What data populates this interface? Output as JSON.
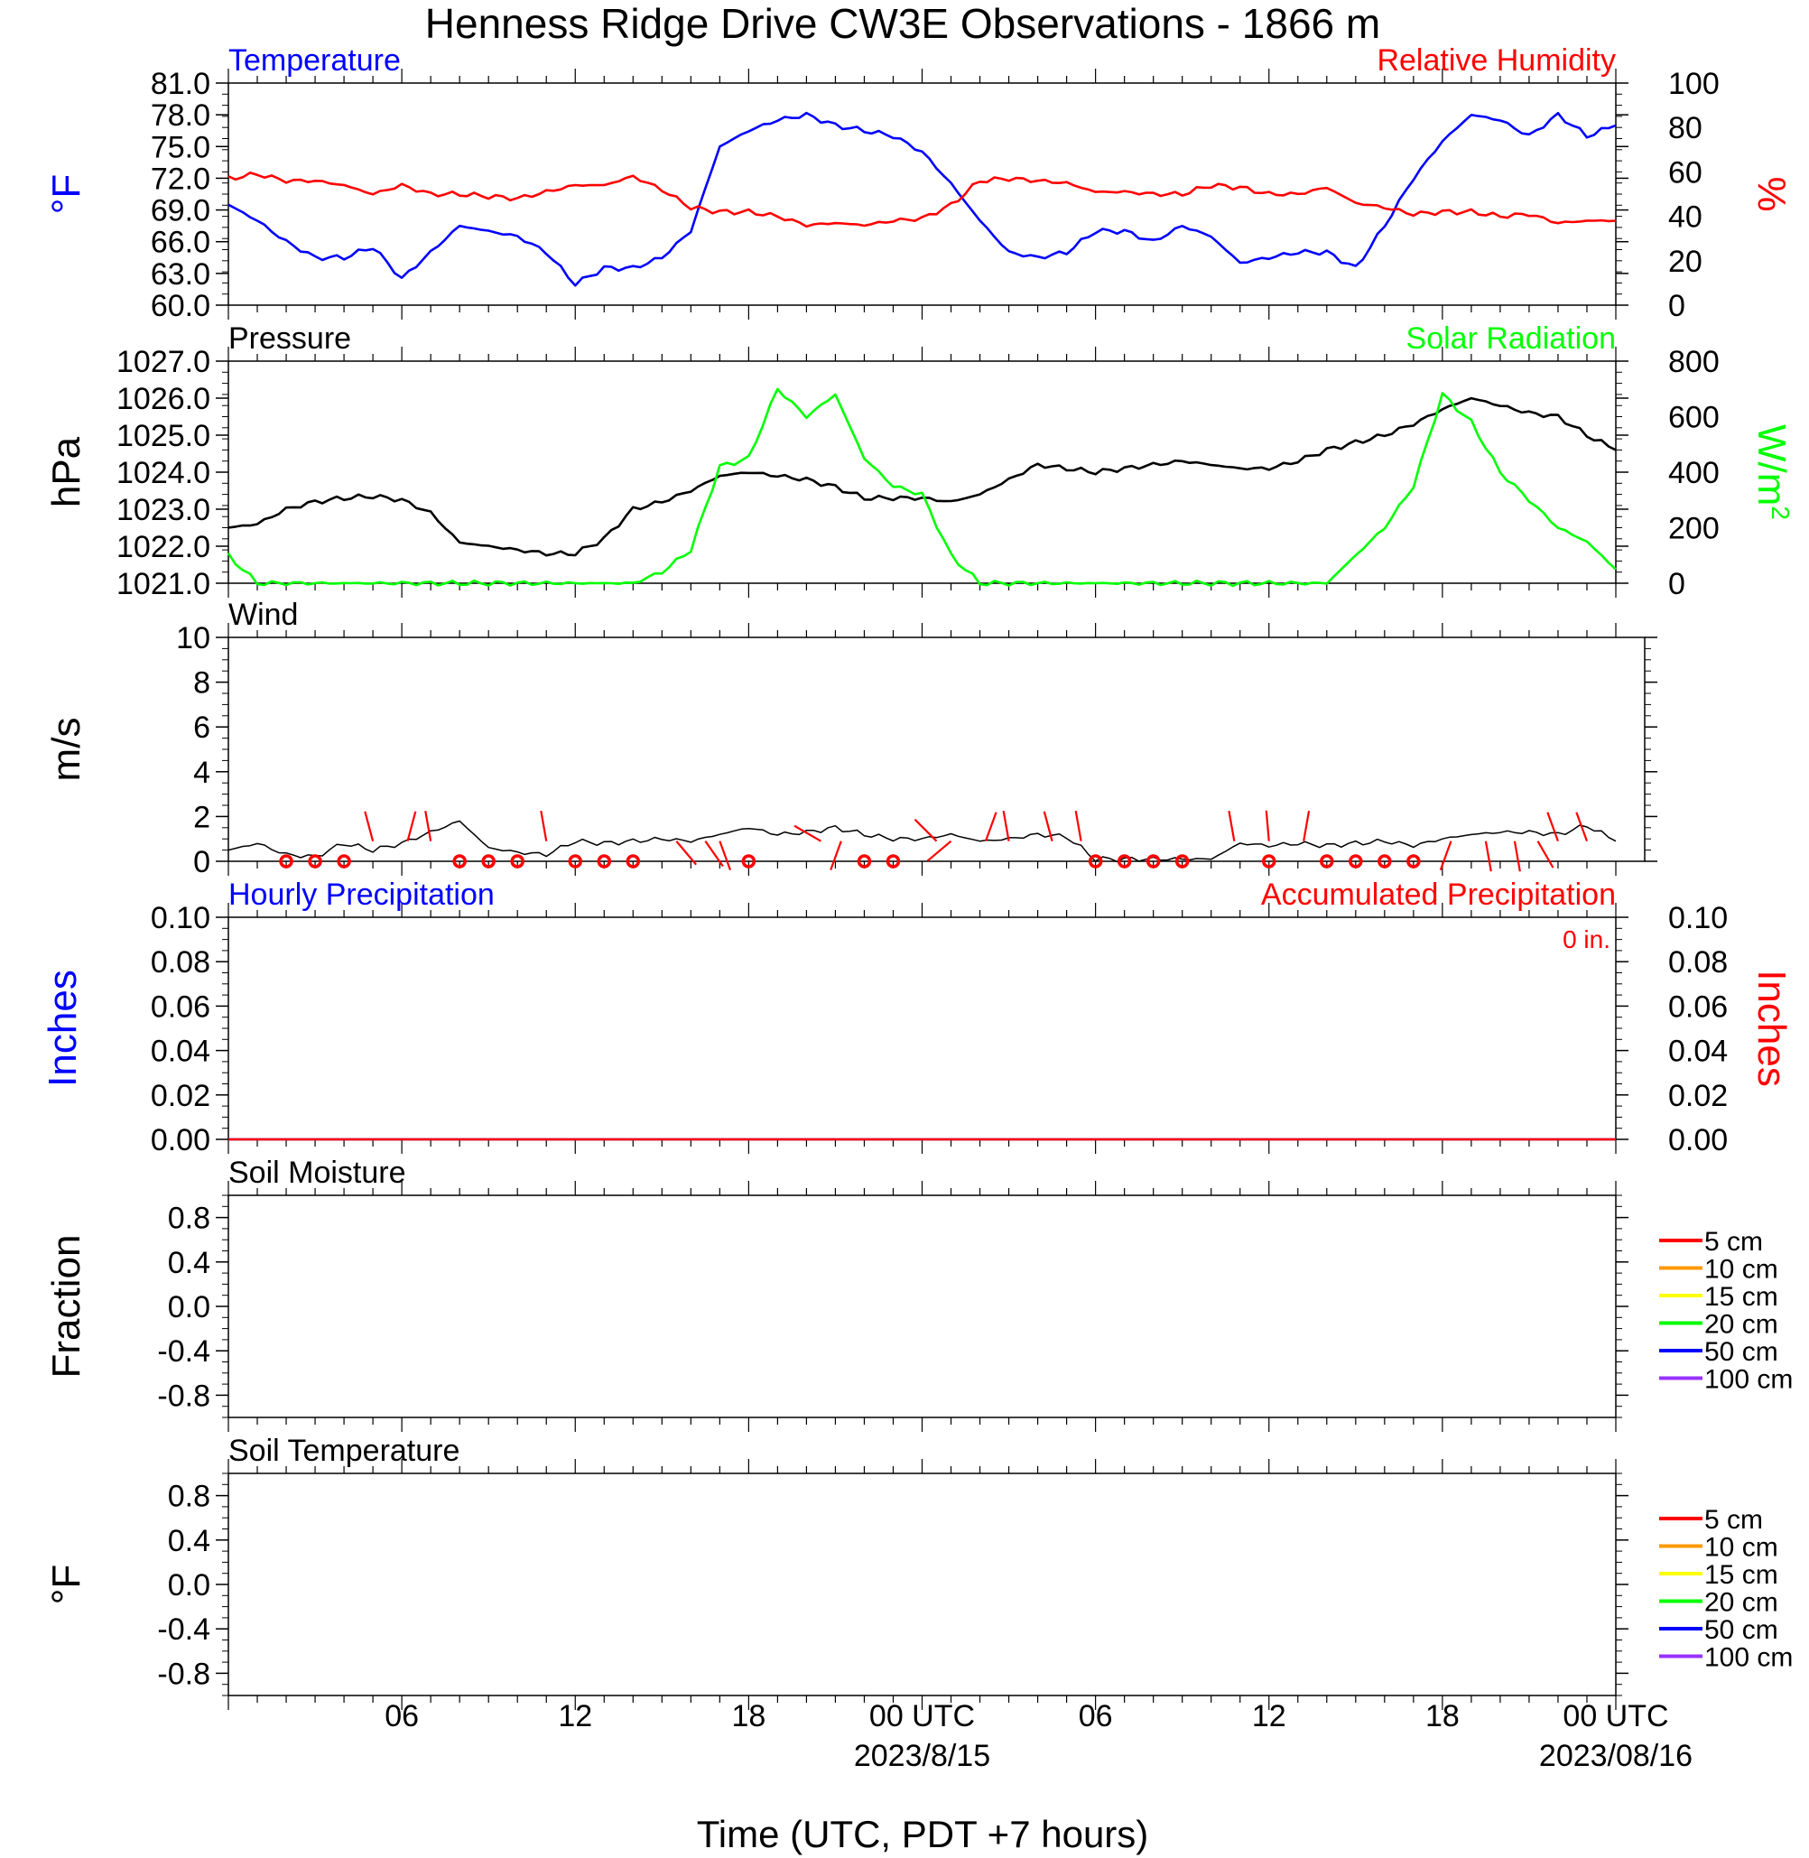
{
  "title": "Henness Ridge Drive CW3E Observations - 1866 m",
  "xlabel": "Time (UTC, PDT +7 hours)",
  "x_ticks": [
    "06",
    "12",
    "18",
    "00 UTC",
    "06",
    "12",
    "18",
    "00 UTC"
  ],
  "x_dates": [
    "2023/8/15",
    "2023/08/16"
  ],
  "colors": {
    "blue": "#0000ff",
    "red": "#ff0000",
    "green": "#00ff00",
    "black": "#000000"
  },
  "chart_data": [
    {
      "type": "line",
      "panel": "temperature_rh",
      "left_label": "Temperature",
      "right_label": "Relative Humidity",
      "left_unit": "°F",
      "right_unit": "%",
      "left_ticks": [
        "81.0",
        "78.0",
        "75.0",
        "72.0",
        "69.0",
        "66.0",
        "63.0",
        "60.0"
      ],
      "right_ticks": [
        "100",
        "80",
        "60",
        "40",
        "20",
        "0"
      ],
      "left_ylim": [
        60,
        81
      ],
      "right_ylim": [
        0,
        100
      ],
      "x_hours": [
        0,
        1,
        2,
        3,
        4,
        5,
        6,
        7,
        8,
        9,
        10,
        11,
        12,
        13,
        14,
        15,
        16,
        17,
        18,
        19,
        20,
        21,
        22,
        23,
        24,
        25,
        26,
        27,
        28,
        29,
        30,
        31,
        32,
        33,
        34,
        35,
        36,
        37,
        38,
        39,
        40,
        41,
        42,
        43,
        44,
        45,
        46,
        47,
        48
      ],
      "series": [
        {
          "name": "Temperature",
          "axis": "left",
          "color": "#0000ff",
          "values": [
            69.5,
            68,
            66,
            64.5,
            64.5,
            65.5,
            62.5,
            65,
            67.5,
            67,
            66.5,
            65,
            62,
            63.5,
            63.5,
            64.5,
            67,
            75,
            76.5,
            77.5,
            78,
            77,
            76.5,
            76,
            74.5,
            71.5,
            68,
            65,
            64.5,
            65,
            67,
            67,
            66,
            67.5,
            66.5,
            64,
            64.5,
            65,
            65,
            63.5,
            67.5,
            72,
            75.5,
            78,
            77.5,
            76,
            78,
            76,
            77
          ]
        },
        {
          "name": "Relative Humidity",
          "axis": "right",
          "color": "#ff0000",
          "values": [
            57,
            59,
            56,
            56,
            54,
            50,
            54,
            50,
            50,
            49,
            48,
            51,
            54,
            54,
            58,
            52,
            44,
            42,
            42,
            40,
            36,
            37,
            36,
            38,
            39,
            45,
            56,
            57,
            56,
            55,
            51,
            51,
            50,
            50,
            54,
            53,
            50,
            50,
            53,
            46,
            44,
            41,
            42,
            42,
            40,
            41,
            37,
            38,
            38
          ]
        }
      ]
    },
    {
      "type": "line",
      "panel": "pressure_solar",
      "left_label": "Pressure",
      "right_label": "Solar Radiation",
      "left_unit": "hPa",
      "right_unit": "W/m",
      "right_unit_sup": "2",
      "left_ticks": [
        "1027.0",
        "1026.0",
        "1025.0",
        "1024.0",
        "1023.0",
        "1022.0",
        "1021.0"
      ],
      "right_ticks": [
        "800",
        "600",
        "400",
        "200",
        "0"
      ],
      "left_ylim": [
        1021,
        1027
      ],
      "right_ylim": [
        0,
        800
      ],
      "x_hours": [
        0,
        1,
        2,
        3,
        4,
        5,
        6,
        7,
        8,
        9,
        10,
        11,
        12,
        13,
        14,
        15,
        16,
        17,
        18,
        19,
        20,
        21,
        22,
        23,
        24,
        25,
        26,
        27,
        28,
        29,
        30,
        31,
        32,
        33,
        34,
        35,
        36,
        37,
        38,
        39,
        40,
        41,
        42,
        43,
        44,
        45,
        46,
        47,
        48
      ],
      "series": [
        {
          "name": "Pressure",
          "axis": "left",
          "color": "#000000",
          "values": [
            1022.5,
            1022.6,
            1023.0,
            1023.2,
            1023.3,
            1023.35,
            1023.25,
            1022.9,
            1022.1,
            1022.0,
            1021.9,
            1021.8,
            1021.8,
            1022.2,
            1023.0,
            1023.2,
            1023.5,
            1023.9,
            1024.0,
            1023.9,
            1023.8,
            1023.6,
            1023.3,
            1023.3,
            1023.3,
            1023.2,
            1023.4,
            1023.8,
            1024.2,
            1024.1,
            1024.0,
            1024.1,
            1024.2,
            1024.3,
            1024.2,
            1024.1,
            1024.1,
            1024.3,
            1024.6,
            1024.8,
            1025.0,
            1025.3,
            1025.7,
            1026.0,
            1025.8,
            1025.6,
            1025.5,
            1025.0,
            1024.6
          ]
        },
        {
          "name": "Solar Radiation",
          "axis": "right",
          "color": "#00ff00",
          "values": [
            100,
            0,
            0,
            0,
            0,
            0,
            0,
            0,
            0,
            0,
            0,
            0,
            0,
            0,
            0,
            40,
            120,
            420,
            450,
            700,
            600,
            680,
            450,
            350,
            320,
            100,
            0,
            0,
            0,
            0,
            0,
            0,
            0,
            0,
            0,
            0,
            0,
            0,
            0,
            100,
            200,
            350,
            680,
            580,
            400,
            300,
            200,
            150,
            50
          ]
        }
      ]
    },
    {
      "type": "line",
      "panel": "wind",
      "left_label": "Wind",
      "left_unit": "m/s",
      "left_ticks": [
        "10",
        "8",
        "6",
        "4",
        "2",
        "0"
      ],
      "left_ylim": [
        0,
        10
      ],
      "x_hours": [
        0,
        1,
        2,
        3,
        4,
        5,
        6,
        7,
        8,
        9,
        10,
        11,
        12,
        13,
        14,
        15,
        16,
        17,
        18,
        19,
        20,
        21,
        22,
        23,
        24,
        25,
        26,
        27,
        28,
        29,
        30,
        31,
        32,
        33,
        34,
        35,
        36,
        37,
        38,
        39,
        40,
        41,
        42,
        43,
        44,
        45,
        46,
        47,
        48
      ],
      "series": [
        {
          "name": "Wind speed",
          "axis": "left",
          "color": "#000000",
          "values": [
            0.5,
            0.8,
            0.3,
            0.2,
            0.8,
            0.5,
            0.8,
            1.3,
            1.8,
            0.6,
            0.4,
            0.3,
            0.9,
            0.8,
            0.9,
            1.0,
            0.9,
            1.2,
            1.5,
            1.2,
            1.3,
            1.5,
            1.2,
            1.0,
            1.0,
            1.2,
            0.9,
            1.0,
            1.2,
            1.1,
            0.1,
            0.1,
            0.1,
            0.1,
            0.1,
            0.8,
            0.7,
            0.8,
            0.7,
            0.8,
            0.9,
            0.7,
            1.0,
            1.2,
            1.3,
            1.3,
            1.2,
            1.6,
            0.9
          ]
        }
      ],
      "calm_markers_hours": [
        2,
        3,
        4,
        8,
        9,
        10,
        12,
        13,
        14,
        18,
        22,
        23,
        30,
        31,
        32,
        33,
        36,
        38,
        39,
        40,
        41
      ],
      "barbs": [
        {
          "h": 5,
          "dir": 345
        },
        {
          "h": 6.2,
          "dir": 15
        },
        {
          "h": 7,
          "dir": 350
        },
        {
          "h": 11,
          "dir": 350
        },
        {
          "h": 15.5,
          "dir": 140
        },
        {
          "h": 16.5,
          "dir": 145
        },
        {
          "h": 17,
          "dir": 160
        },
        {
          "h": 20.5,
          "dir": 300
        },
        {
          "h": 21.2,
          "dir": 200
        },
        {
          "h": 24.5,
          "dir": 315
        },
        {
          "h": 25,
          "dir": 230
        },
        {
          "h": 26.2,
          "dir": 20
        },
        {
          "h": 27,
          "dir": 350
        },
        {
          "h": 28.5,
          "dir": 345
        },
        {
          "h": 29.5,
          "dir": 350
        },
        {
          "h": 34.8,
          "dir": 350
        },
        {
          "h": 36,
          "dir": 355
        },
        {
          "h": 37.2,
          "dir": 10
        },
        {
          "h": 42.3,
          "dir": 200
        },
        {
          "h": 43.5,
          "dir": 170
        },
        {
          "h": 44.5,
          "dir": 170
        },
        {
          "h": 45.3,
          "dir": 150
        },
        {
          "h": 46,
          "dir": 340
        },
        {
          "h": 47,
          "dir": 340
        }
      ]
    },
    {
      "type": "line",
      "panel": "precipitation",
      "left_label": "Hourly Precipitation",
      "right_label": "Accumulated Precipitation",
      "annotation": "0 in.",
      "left_unit": "Inches",
      "right_unit": "Inches",
      "left_ticks": [
        "0.10",
        "0.08",
        "0.06",
        "0.04",
        "0.02",
        "0.00"
      ],
      "right_ticks": [
        "0.10",
        "0.08",
        "0.06",
        "0.04",
        "0.02",
        "0.00"
      ],
      "left_ylim": [
        0,
        0.1
      ],
      "right_ylim": [
        0,
        0.1
      ],
      "x_hours": [
        0,
        48
      ],
      "series": [
        {
          "name": "Hourly Precipitation",
          "axis": "left",
          "color": "#0000ff",
          "values": [
            0,
            0
          ]
        },
        {
          "name": "Accumulated Precipitation",
          "axis": "right",
          "color": "#ff0000",
          "values": [
            0,
            0
          ]
        }
      ]
    },
    {
      "type": "line",
      "panel": "soil_moisture",
      "left_label": "Soil Moisture",
      "left_unit": "Fraction",
      "left_ticks": [
        "0.8",
        "0.4",
        "0.0",
        "-0.4",
        "-0.8"
      ],
      "left_ylim": [
        -1,
        1
      ],
      "legend": [
        {
          "label": "5 cm",
          "color": "#ff0000"
        },
        {
          "label": "10 cm",
          "color": "#ff9900"
        },
        {
          "label": "15 cm",
          "color": "#ffff00"
        },
        {
          "label": "20 cm",
          "color": "#00ff00"
        },
        {
          "label": "50 cm",
          "color": "#0000ff"
        },
        {
          "label": "100 cm",
          "color": "#9933ff"
        }
      ]
    },
    {
      "type": "line",
      "panel": "soil_temperature",
      "left_label": "Soil Temperature",
      "left_unit": "°F",
      "left_ticks": [
        "0.8",
        "0.4",
        "0.0",
        "-0.4",
        "-0.8"
      ],
      "left_ylim": [
        -1,
        1
      ],
      "legend": [
        {
          "label": "5 cm",
          "color": "#ff0000"
        },
        {
          "label": "10 cm",
          "color": "#ff9900"
        },
        {
          "label": "15 cm",
          "color": "#ffff00"
        },
        {
          "label": "20 cm",
          "color": "#00ff00"
        },
        {
          "label": "50 cm",
          "color": "#0000ff"
        },
        {
          "label": "100 cm",
          "color": "#9933ff"
        }
      ]
    }
  ]
}
